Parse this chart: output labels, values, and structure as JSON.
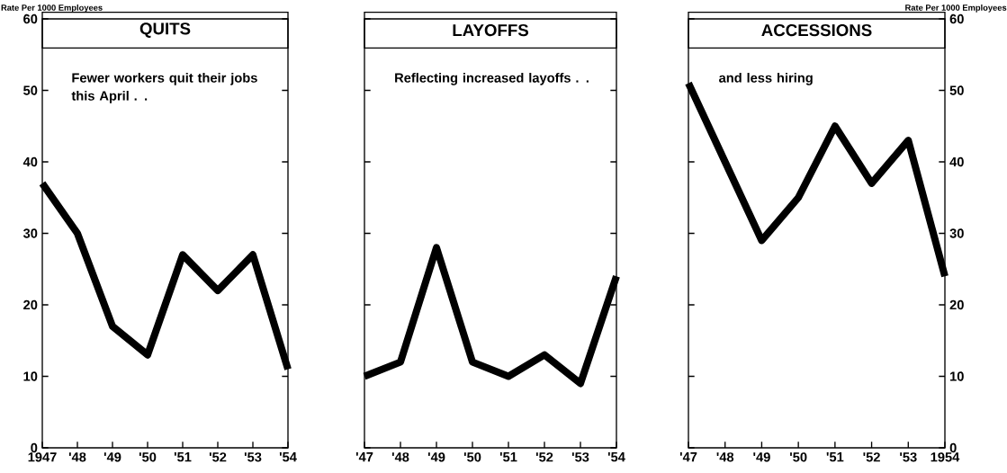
{
  "chart_data": [
    {
      "type": "line",
      "title": "QUITS",
      "ylabel": "Rate Per 1000 Employees",
      "categories": [
        "1947",
        "'48",
        "'49",
        "'50",
        "'51",
        "'52",
        "'53",
        "'54"
      ],
      "ylim": [
        0,
        60
      ],
      "yticks": [
        0,
        10,
        20,
        30,
        40,
        50,
        60
      ],
      "annotations": [
        "Fewer workers quit their jobs this April . ."
      ],
      "series": [
        {
          "color": "#000000",
          "values": [
            37,
            30,
            17,
            13,
            27,
            22,
            27,
            11
          ]
        }
      ]
    },
    {
      "type": "line",
      "title": "LAYOFFS",
      "categories": [
        "'47",
        "'48",
        "'49",
        "'50",
        "'51",
        "'52",
        "'53",
        "'54"
      ],
      "ylim": [
        0,
        60
      ],
      "yticks": [
        0,
        10,
        20,
        30,
        40,
        50,
        60
      ],
      "tick_labels": "x",
      "annotations": [
        "Reflecting increased layoffs . ."
      ],
      "series": [
        {
          "color": "#000000",
          "values": [
            10,
            12,
            28,
            12,
            10,
            13,
            9,
            24
          ]
        }
      ]
    },
    {
      "type": "line",
      "title": "ACCESSIONS",
      "y2label": "Rate Per 1000 Employees",
      "categories": [
        "'47",
        "'48",
        "'49",
        "'50",
        "'51",
        "'52",
        "'53",
        "1954"
      ],
      "y2lim": [
        0,
        60
      ],
      "y2ticks": [
        0,
        10,
        20,
        30,
        40,
        50,
        60
      ],
      "annotations": [
        "and less hiring"
      ],
      "series": [
        {
          "color": "#000000",
          "values": [
            51,
            40,
            29,
            35,
            45,
            37,
            43,
            24
          ],
          "axis": "y2"
        }
      ]
    }
  ]
}
